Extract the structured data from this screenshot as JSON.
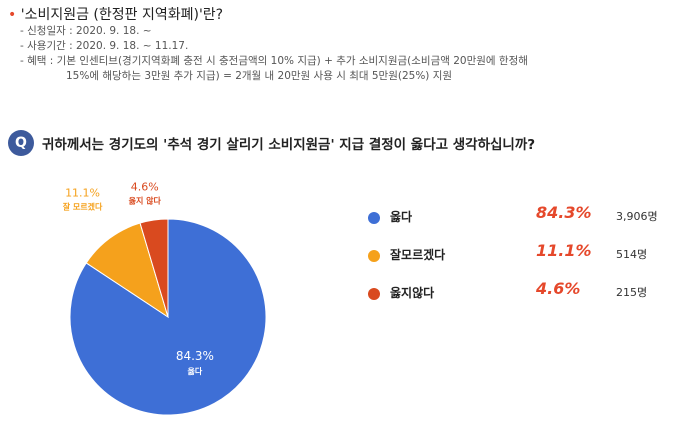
{
  "info": {
    "title": "'소비지원금 (한정판 지역화폐)'란?",
    "title_bullet": "•",
    "lines": [
      "- 신청일자 : 2020. 9. 18. ~",
      "- 사용기간 : 2020. 9. 18. ~ 11.17.",
      "- 혜택 : 기본 인센티브(경기지역화폐 충전 시 충전금액의 10% 지급) + 추가 소비지원금(소비금액 20만원에 한정해",
      "15%에 해당하는 3만원 추가 지급) = 2개월 내 20만원 사용 시 최대 5만원(25%) 지원"
    ]
  },
  "question": {
    "badge": "Q",
    "text": "귀하께서는 경기도의 '추석 경기 살리기 소비지원금' 지급 결정이 옳다고 생각하십니까?"
  },
  "chart_data": {
    "type": "pie",
    "start": "top, clockwise",
    "slices": [
      {
        "label": "옳다",
        "legend_label": "옳다",
        "pct_text": "84.3%",
        "value": 84.3,
        "count_text": "3,906명",
        "color": "#3e6fd6"
      },
      {
        "label": "잘 모르겠다",
        "legend_label": "잘모르겠다",
        "pct_text": "11.1%",
        "value": 11.1,
        "count_text": "514명",
        "color": "#f5a11c"
      },
      {
        "label": "옳지 않다",
        "legend_label": "옳지않다",
        "pct_text": "4.6%",
        "value": 4.6,
        "count_text": "215명",
        "color": "#d94a1f"
      }
    ]
  }
}
